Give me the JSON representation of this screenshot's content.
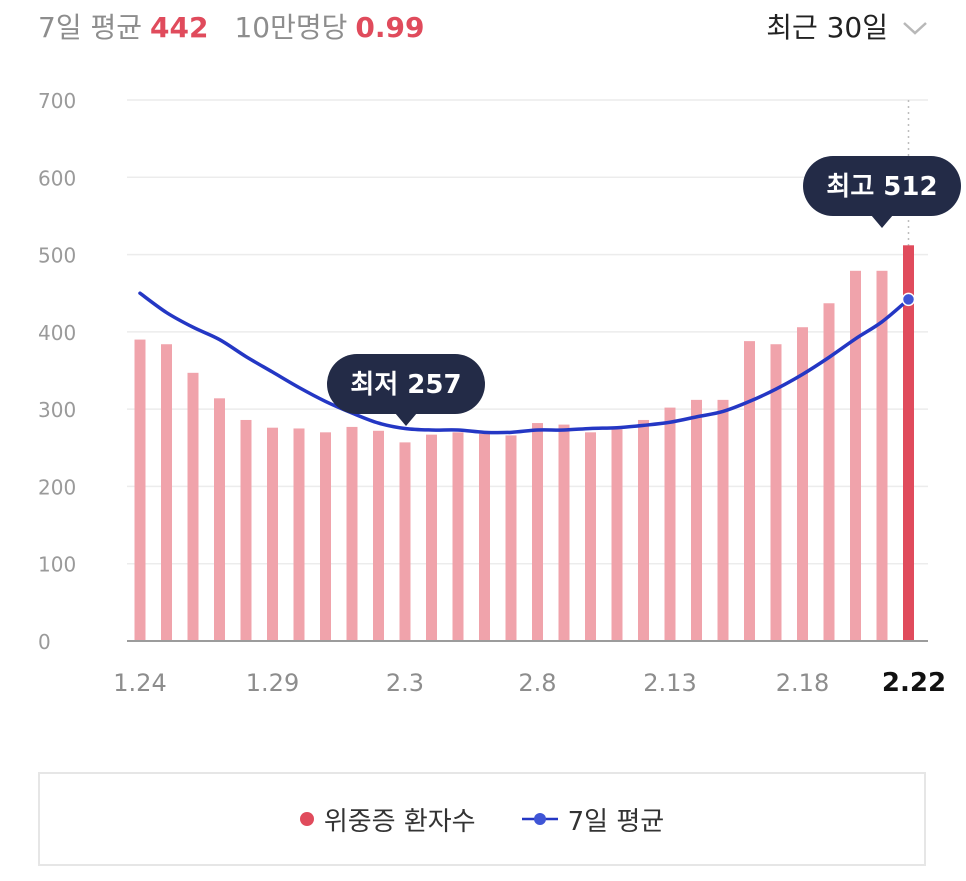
{
  "header": {
    "avg_label": "7일 평균",
    "avg_value": "442",
    "per100k_label": "10만명당",
    "per100k_value": "0.99",
    "period_label": "최근 30일"
  },
  "callouts": {
    "max_label": "최고 512",
    "min_label": "최저 257"
  },
  "legend": {
    "bars_label": "위중증 환자수",
    "line_label": "7일 평균"
  },
  "colors": {
    "bar": "#f0a3ab",
    "bar_highlight": "#e04b5c",
    "line": "#2437c4",
    "callout_bg": "#232b47"
  },
  "chart_data": {
    "type": "bar",
    "categories": [
      "1.24",
      "1.25",
      "1.26",
      "1.27",
      "1.28",
      "1.29",
      "1.30",
      "1.31",
      "2.1",
      "2.2",
      "2.3",
      "2.4",
      "2.5",
      "2.6",
      "2.7",
      "2.8",
      "2.9",
      "2.10",
      "2.11",
      "2.12",
      "2.13",
      "2.14",
      "2.15",
      "2.16",
      "2.17",
      "2.18",
      "2.19",
      "2.20",
      "2.21",
      "2.22"
    ],
    "tick_labels": [
      "1.24",
      "1.29",
      "2.3",
      "2.8",
      "2.13",
      "2.18",
      "2.22"
    ],
    "highlight_category": "2.22",
    "series": [
      {
        "name": "위중증 환자수",
        "type": "bar",
        "values": [
          390,
          384,
          347,
          314,
          286,
          276,
          275,
          270,
          277,
          272,
          257,
          267,
          270,
          268,
          266,
          282,
          280,
          270,
          274,
          286,
          302,
          312,
          312,
          388,
          384,
          406,
          437,
          479,
          479,
          512
        ]
      },
      {
        "name": "7일 평균",
        "type": "line",
        "values": [
          450,
          425,
          406,
          390,
          368,
          348,
          328,
          310,
          295,
          282,
          275,
          273,
          273,
          270,
          270,
          273,
          273,
          275,
          276,
          279,
          283,
          290,
          297,
          310,
          326,
          345,
          367,
          391,
          413,
          442
        ]
      }
    ],
    "ylim": [
      0,
      700
    ],
    "yticks": [
      0,
      100,
      200,
      300,
      400,
      500,
      600,
      700
    ],
    "grid": true
  }
}
